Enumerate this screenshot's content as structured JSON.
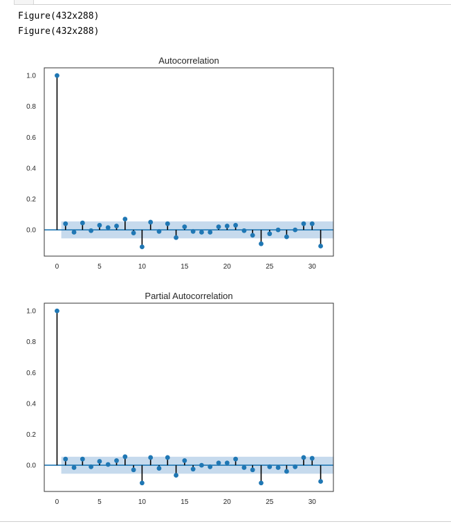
{
  "output": {
    "lines": [
      "Figure(432x288)",
      "Figure(432x288)"
    ]
  },
  "chart_data": [
    {
      "type": "stem",
      "title": "Autocorrelation",
      "xlim": [
        -1.5,
        32.5
      ],
      "ylim": [
        -0.17,
        1.05
      ],
      "xticks": [
        0,
        5,
        10,
        15,
        20,
        25,
        30
      ],
      "yticks": [
        0.0,
        0.2,
        0.4,
        0.6,
        0.8,
        1.0
      ],
      "ytick_labels": [
        "0.0",
        "0.2",
        "0.4",
        "0.6",
        "0.8",
        "1.0"
      ],
      "confidence_band": [
        -0.055,
        0.055
      ],
      "x": [
        0,
        1,
        2,
        3,
        4,
        5,
        6,
        7,
        8,
        9,
        10,
        11,
        12,
        13,
        14,
        15,
        16,
        17,
        18,
        19,
        20,
        21,
        22,
        23,
        24,
        25,
        26,
        27,
        28,
        29,
        30,
        31
      ],
      "values": [
        1.0,
        0.04,
        -0.015,
        0.045,
        -0.005,
        0.03,
        0.015,
        0.025,
        0.07,
        -0.02,
        -0.11,
        0.05,
        -0.01,
        0.04,
        -0.05,
        0.02,
        -0.01,
        -0.015,
        -0.015,
        0.02,
        0.025,
        0.03,
        -0.005,
        -0.035,
        -0.09,
        -0.025,
        0.0,
        -0.045,
        0.0,
        0.04,
        0.04,
        -0.105
      ]
    },
    {
      "type": "stem",
      "title": "Partial Autocorrelation",
      "xlim": [
        -1.5,
        32.5
      ],
      "ylim": [
        -0.17,
        1.05
      ],
      "xticks": [
        0,
        5,
        10,
        15,
        20,
        25,
        30
      ],
      "yticks": [
        0.0,
        0.2,
        0.4,
        0.6,
        0.8,
        1.0
      ],
      "ytick_labels": [
        "0.0",
        "0.2",
        "0.4",
        "0.6",
        "0.8",
        "1.0"
      ],
      "confidence_band": [
        -0.055,
        0.055
      ],
      "x": [
        0,
        1,
        2,
        3,
        4,
        5,
        6,
        7,
        8,
        9,
        10,
        11,
        12,
        13,
        14,
        15,
        16,
        17,
        18,
        19,
        20,
        21,
        22,
        23,
        24,
        25,
        26,
        27,
        28,
        29,
        30,
        31
      ],
      "values": [
        1.0,
        0.04,
        -0.015,
        0.04,
        -0.01,
        0.025,
        0.005,
        0.03,
        0.055,
        -0.03,
        -0.115,
        0.05,
        -0.02,
        0.05,
        -0.065,
        0.03,
        -0.025,
        0.0,
        -0.01,
        0.015,
        0.015,
        0.04,
        -0.015,
        -0.03,
        -0.115,
        -0.01,
        -0.015,
        -0.04,
        -0.01,
        0.05,
        0.045,
        -0.105
      ]
    }
  ]
}
